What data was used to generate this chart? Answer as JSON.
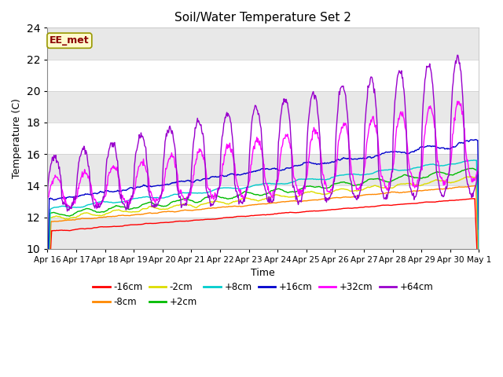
{
  "title": "Soil/Water Temperature Set 2",
  "xlabel": "Time",
  "ylabel": "Temperature (C)",
  "ylim": [
    10,
    24
  ],
  "yticks": [
    10,
    12,
    14,
    16,
    18,
    20,
    22,
    24
  ],
  "annotation_text": "EE_met",
  "annotation_color": "#8B0000",
  "annotation_bg": "#FFFACD",
  "annotation_edge": "#999900",
  "band_color": "#e8e8e8",
  "band_ranges": [
    [
      10,
      12
    ],
    [
      14,
      16
    ],
    [
      18,
      20
    ],
    [
      22,
      24
    ]
  ],
  "series_colors": {
    "-16cm": "#ff0000",
    "-8cm": "#ff8800",
    "-2cm": "#dddd00",
    "+2cm": "#00bb00",
    "+8cm": "#00cccc",
    "+16cm": "#0000cc",
    "+32cm": "#ff00ff",
    "+64cm": "#9900cc"
  },
  "n_points": 720,
  "x_start": 0,
  "x_end": 15,
  "xtick_positions": [
    0,
    1,
    2,
    3,
    4,
    5,
    6,
    7,
    8,
    9,
    10,
    11,
    12,
    13,
    14,
    15
  ],
  "xtick_labels": [
    "Apr 16",
    "Apr 17",
    "Apr 18",
    "Apr 19",
    "Apr 20",
    "Apr 21",
    "Apr 22",
    "Apr 23",
    "Apr 24",
    "Apr 25",
    "Apr 26",
    "Apr 27",
    "Apr 28",
    "Apr 29",
    "Apr 30",
    "May 1"
  ]
}
